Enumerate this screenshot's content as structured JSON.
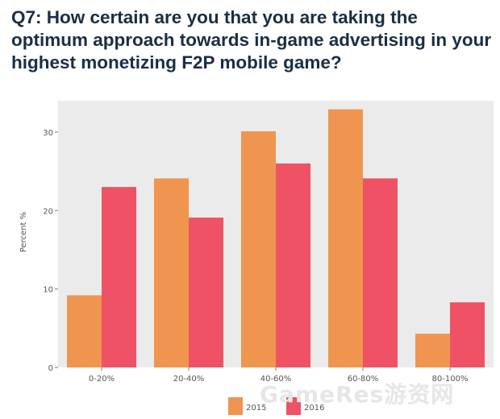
{
  "chart_data": {
    "type": "bar",
    "title": "Q7: How certain are you that you are taking the optimum approach towards in-game advertising in your highest monetizing F2P mobile game?",
    "ylabel": "Percent %",
    "xlabel": "",
    "categories": [
      "0-20%",
      "20-40%",
      "40-60%",
      "60-80%",
      "80-100%"
    ],
    "series": [
      {
        "name": "2015",
        "color": "#f0954f",
        "values": [
          9.2,
          24.1,
          30.1,
          32.9,
          4.3
        ]
      },
      {
        "name": "2016",
        "color": "#ee5264",
        "values": [
          23.0,
          19.1,
          26.0,
          24.1,
          8.3
        ]
      }
    ],
    "ylim": [
      0,
      34
    ],
    "yticks": [
      0,
      10,
      20,
      30
    ],
    "grid": false,
    "legend_position": "bottom"
  },
  "watermark": "GameRes游资网"
}
